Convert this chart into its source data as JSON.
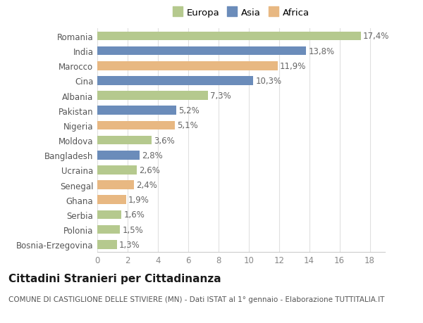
{
  "countries": [
    "Romania",
    "India",
    "Marocco",
    "Cina",
    "Albania",
    "Pakistan",
    "Nigeria",
    "Moldova",
    "Bangladesh",
    "Ucraina",
    "Senegal",
    "Ghana",
    "Serbia",
    "Polonia",
    "Bosnia-Erzegovina"
  ],
  "values": [
    17.4,
    13.8,
    11.9,
    10.3,
    7.3,
    5.2,
    5.1,
    3.6,
    2.8,
    2.6,
    2.4,
    1.9,
    1.6,
    1.5,
    1.3
  ],
  "labels": [
    "17,4%",
    "13,8%",
    "11,9%",
    "10,3%",
    "7,3%",
    "5,2%",
    "5,1%",
    "3,6%",
    "2,8%",
    "2,6%",
    "2,4%",
    "1,9%",
    "1,6%",
    "1,5%",
    "1,3%"
  ],
  "continents": [
    "Europa",
    "Asia",
    "Africa",
    "Asia",
    "Europa",
    "Asia",
    "Africa",
    "Europa",
    "Asia",
    "Europa",
    "Africa",
    "Africa",
    "Europa",
    "Europa",
    "Europa"
  ],
  "colors": {
    "Europa": "#b5c98e",
    "Asia": "#6b8cba",
    "Africa": "#e8b882"
  },
  "title": "Cittadini Stranieri per Cittadinanza",
  "subtitle": "COMUNE DI CASTIGLIONE DELLE STIVIERE (MN) - Dati ISTAT al 1° gennaio - Elaborazione TUTTITALIA.IT",
  "xlim": [
    0,
    19
  ],
  "xticks": [
    0,
    2,
    4,
    6,
    8,
    10,
    12,
    14,
    16,
    18
  ],
  "background_color": "#ffffff",
  "grid_color": "#e0e0e0",
  "bar_height": 0.6,
  "label_fontsize": 8.5,
  "tick_fontsize": 8.5,
  "title_fontsize": 11,
  "subtitle_fontsize": 7.5
}
